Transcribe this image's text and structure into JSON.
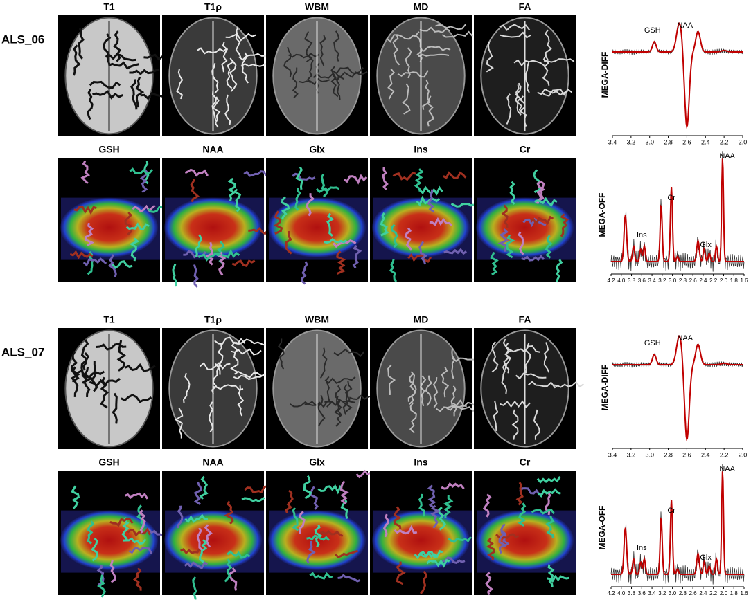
{
  "panels": [
    {
      "subject": "ALS_06",
      "row1_titles": [
        "T1",
        "T1ρ",
        "WBM",
        "MD",
        "FA"
      ],
      "row2_titles": [
        "GSH",
        "NAA",
        "Glx",
        "Ins",
        "Cr"
      ],
      "diff": {
        "ylabel": "MEGA-DIFF",
        "peaks": [
          "GSH",
          "NAA"
        ],
        "xticks": [
          3.4,
          3.2,
          {
            "value": 3,
            "label": "3.0"
          },
          2.8,
          2.6,
          2.4,
          2.2,
          {
            "value": 2,
            "label": "2.0"
          }
        ]
      },
      "off": {
        "ylabel": "MEGA-OFF",
        "peaks": [
          "Ins",
          "Cr",
          "Glx",
          "NAA"
        ],
        "xticks": [
          4.2,
          {
            "value": 4,
            "label": "4.0"
          },
          3.8,
          3.6,
          3.4,
          3.2,
          {
            "value": 3,
            "label": "3.0"
          },
          2.8,
          2.6,
          2.4,
          2.2,
          {
            "value": 2,
            "label": "2.0"
          },
          1.8,
          1.6
        ]
      }
    },
    {
      "subject": "ALS_07",
      "row1_titles": [
        "T1",
        "T1ρ",
        "WBM",
        "MD",
        "FA"
      ],
      "row2_titles": [
        "GSH",
        "NAA",
        "Glx",
        "Ins",
        "Cr"
      ],
      "diff": {
        "ylabel": "MEGA-DIFF",
        "peaks": [
          "GSH",
          "NAA"
        ],
        "xticks": [
          3.4,
          3.2,
          {
            "value": 3,
            "label": "3.0"
          },
          2.8,
          2.6,
          2.4,
          2.2,
          {
            "value": 2,
            "label": "2.0"
          }
        ]
      },
      "off": {
        "ylabel": "MEGA-OFF",
        "peaks": [
          "Ins",
          "Cr",
          "Glx",
          "NAA"
        ],
        "xticks": [
          4.2,
          {
            "value": 4,
            "label": "4.0"
          },
          3.8,
          3.6,
          3.4,
          3.2,
          {
            "value": 3,
            "label": "3.0"
          },
          2.8,
          2.6,
          2.4,
          2.2,
          {
            "value": 2,
            "label": "2.0"
          },
          1.8,
          1.6
        ]
      }
    }
  ]
}
